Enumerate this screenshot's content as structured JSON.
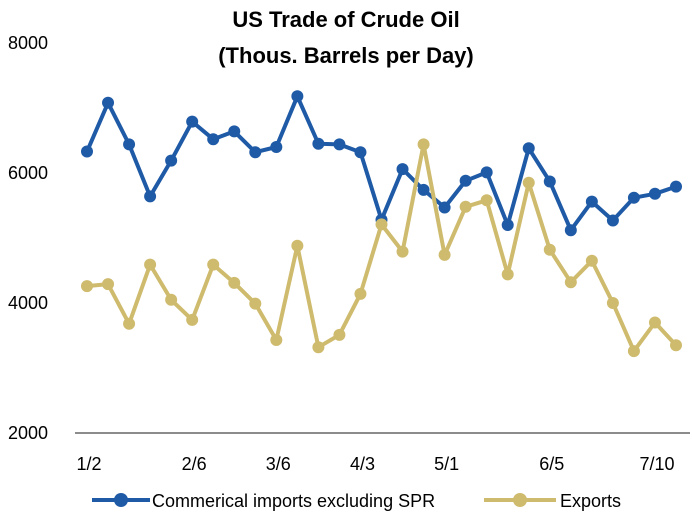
{
  "chart_data": {
    "type": "line",
    "title": "US Trade of Crude Oil",
    "subtitle": "(Thous. Barrels per Day)",
    "xlabel": "",
    "ylabel": "",
    "ylim": [
      2000,
      8000
    ],
    "yticks": [
      "2000",
      "4000",
      "6000",
      "8000"
    ],
    "xtick_labels": [
      {
        "index": 0,
        "label": "1/2"
      },
      {
        "index": 5,
        "label": "2/6"
      },
      {
        "index": 9,
        "label": "3/6"
      },
      {
        "index": 13,
        "label": "4/3"
      },
      {
        "index": 17,
        "label": "5/1"
      },
      {
        "index": 22,
        "label": "6/5"
      },
      {
        "index": 27,
        "label": "7/10"
      }
    ],
    "grid": false,
    "legend_position": "bottom",
    "series": [
      {
        "name": "Commerical imports excluding SPR",
        "color": "#1f5aa6",
        "values": [
          6330,
          7080,
          6440,
          5640,
          6190,
          6790,
          6520,
          6640,
          6320,
          6400,
          7180,
          6450,
          6440,
          6320,
          5280,
          6060,
          5740,
          5470,
          5880,
          6010,
          5200,
          6380,
          5870,
          5120,
          5560,
          5270,
          5620,
          5680,
          5790
        ]
      },
      {
        "name": "Exports",
        "color": "#cfbb6e",
        "values": [
          4260,
          4290,
          3680,
          4590,
          4050,
          3740,
          4590,
          4310,
          3990,
          3430,
          4880,
          3320,
          3510,
          4140,
          5210,
          4790,
          6440,
          4740,
          5480,
          5580,
          4440,
          5850,
          4820,
          4320,
          4650,
          4000,
          3260,
          3700,
          3350
        ]
      }
    ]
  }
}
